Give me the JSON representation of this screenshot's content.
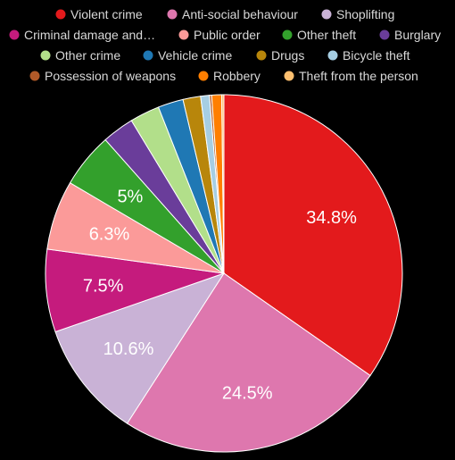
{
  "chart_data": {
    "type": "pie",
    "title": "",
    "legend_position": "top",
    "slices": [
      {
        "label": "Violent crime",
        "value": 34.8,
        "color": "#e31a1c",
        "value_label": "34.8%"
      },
      {
        "label": "Anti-social behaviour",
        "value": 24.5,
        "color": "#de77ae",
        "value_label": "24.5%"
      },
      {
        "label": "Shoplifting",
        "value": 10.6,
        "color": "#c9b2d6",
        "value_label": "10.6%"
      },
      {
        "label": "Criminal damage and…",
        "value": 7.5,
        "color": "#c51b7d",
        "value_label": "7.5%"
      },
      {
        "label": "Public order",
        "value": 6.3,
        "color": "#fb9a99",
        "value_label": "6.3%"
      },
      {
        "label": "Other theft",
        "value": 5.0,
        "color": "#33a02c",
        "value_label": "5%"
      },
      {
        "label": "Burglary",
        "value": 2.9,
        "color": "#6a3d9a",
        "value_label": ""
      },
      {
        "label": "Other crime",
        "value": 2.7,
        "color": "#b2df8a",
        "value_label": ""
      },
      {
        "label": "Vehicle crime",
        "value": 2.3,
        "color": "#1f78b4",
        "value_label": ""
      },
      {
        "label": "Drugs",
        "value": 1.6,
        "color": "#b8860b",
        "value_label": ""
      },
      {
        "label": "Bicycle theft",
        "value": 0.8,
        "color": "#a6cee3",
        "value_label": ""
      },
      {
        "label": "Possession of weapons",
        "value": 0.2,
        "color": "#b15928",
        "value_label": ""
      },
      {
        "label": "Robbery",
        "value": 0.9,
        "color": "#ff7f00",
        "value_label": ""
      },
      {
        "label": "Theft from the person",
        "value": 0.2,
        "color": "#fdbf6f",
        "value_label": ""
      }
    ]
  }
}
